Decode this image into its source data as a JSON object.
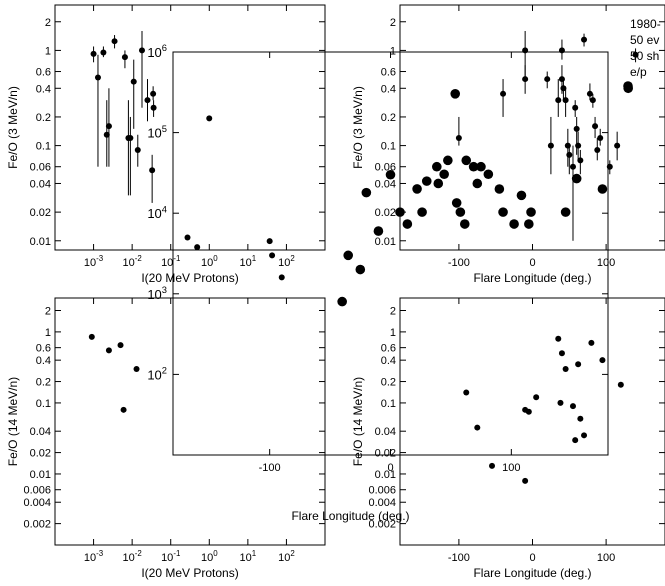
{
  "chart_data": [
    {
      "type": "scatter",
      "panel": "top-left",
      "xlabel": "I(20 MeV Protons)",
      "ylabel": "Fe/O (3 MeV/n)",
      "xscale": "log",
      "yscale": "log",
      "xlim": [
        0.0001,
        1000
      ],
      "ylim": [
        0.008,
        3
      ],
      "xticks": [
        {
          "v": 0.001,
          "m": "10",
          "e": "-3"
        },
        {
          "v": 0.01,
          "m": "10",
          "e": "-2"
        },
        {
          "v": 0.1,
          "m": "10",
          "e": "-1"
        },
        {
          "v": 1,
          "m": "10",
          "e": "0"
        },
        {
          "v": 10,
          "m": "10",
          "e": "1"
        },
        {
          "v": 100,
          "m": "10",
          "e": "2"
        }
      ],
      "yticks": [
        "0.01",
        "0.02",
        "0.04",
        "0.06",
        "0.1",
        "0.2",
        "0.4",
        "0.6",
        "1",
        "2"
      ],
      "series": [
        {
          "kind": "small",
          "points": [
            {
              "x": 0.001,
              "y": 0.92,
              "lo": 0.75,
              "hi": 1.1
            },
            {
              "x": 0.0013,
              "y": 0.52,
              "lo": 0.06,
              "hi": 0.9
            },
            {
              "x": 0.0018,
              "y": 0.95,
              "lo": 0.85,
              "hi": 1.1
            },
            {
              "x": 0.0022,
              "y": 0.13,
              "lo": 0.06,
              "hi": 0.3
            },
            {
              "x": 0.0025,
              "y": 0.16,
              "lo": 0.06,
              "hi": 0.4
            },
            {
              "x": 0.0035,
              "y": 1.25,
              "lo": 1.05,
              "hi": 1.45
            },
            {
              "x": 0.0065,
              "y": 0.85,
              "lo": 0.65,
              "hi": 1.0
            },
            {
              "x": 0.008,
              "y": 0.12,
              "lo": 0.03,
              "hi": 0.3
            },
            {
              "x": 0.009,
              "y": 0.12,
              "lo": 0.03,
              "hi": 0.2
            },
            {
              "x": 0.011,
              "y": 0.47,
              "lo": 0.15,
              "hi": 0.8
            },
            {
              "x": 0.014,
              "y": 0.09,
              "lo": 0.06,
              "hi": 0.13
            },
            {
              "x": 0.018,
              "y": 1.0,
              "lo": 0.25,
              "hi": 1.6
            },
            {
              "x": 0.025,
              "y": 0.3,
              "lo": 0.18,
              "hi": 0.5
            },
            {
              "x": 0.035,
              "y": 0.35,
              "lo": 0.3,
              "hi": 0.42
            },
            {
              "x": 0.036,
              "y": 0.25,
              "lo": 0.2,
              "hi": 0.3
            },
            {
              "x": 0.033,
              "y": 0.055,
              "lo": 0.025,
              "hi": 0.08
            }
          ]
        }
      ]
    },
    {
      "type": "scatter",
      "panel": "top-right",
      "xlabel": "Flare Longitude (deg.)",
      "ylabel": "Fe/O (3 MeV/n)",
      "yscale": "log",
      "xlim": [
        -180,
        180
      ],
      "ylim": [
        0.008,
        3
      ],
      "xticks": [
        "-100",
        "0",
        "100"
      ],
      "yticks": [
        "0.01",
        "0.02",
        "0.04",
        "0.06",
        "0.1",
        "0.2",
        "0.4",
        "0.6",
        "1",
        "2"
      ],
      "legend": [
        "1980-",
        "50 ev",
        "50 sh",
        "e/p"
      ],
      "series": [
        {
          "kind": "small",
          "points": [
            {
              "x": -10,
              "y": 1.0,
              "lo": 0.5,
              "hi": 1.6
            },
            {
              "x": -10,
              "y": 0.5,
              "lo": 0.35,
              "hi": 0.7
            },
            {
              "x": -40,
              "y": 0.35,
              "lo": 0.2,
              "hi": 0.5
            },
            {
              "x": -100,
              "y": 0.12,
              "lo": 0.1,
              "hi": 0.2
            },
            {
              "x": 20,
              "y": 0.5,
              "lo": 0.4,
              "hi": 0.6
            },
            {
              "x": 25,
              "y": 0.1,
              "lo": 0.05,
              "hi": 0.2
            },
            {
              "x": 35,
              "y": 0.3,
              "lo": 0.2,
              "hi": 0.5
            },
            {
              "x": 40,
              "y": 0.5,
              "lo": 0.35,
              "hi": 0.7
            },
            {
              "x": 40,
              "y": 1.0,
              "lo": 0.8,
              "hi": 1.3
            },
            {
              "x": 42,
              "y": 0.4,
              "lo": 0.3,
              "hi": 0.5
            },
            {
              "x": 45,
              "y": 0.3,
              "lo": 0.2,
              "hi": 0.4
            },
            {
              "x": 48,
              "y": 0.1,
              "lo": 0.06,
              "hi": 0.15
            },
            {
              "x": 50,
              "y": 0.08,
              "lo": 0.05,
              "hi": 0.1
            },
            {
              "x": 55,
              "y": 0.06,
              "lo": 0.01,
              "hi": 0.1
            },
            {
              "x": 58,
              "y": 0.25,
              "lo": 0.2,
              "hi": 0.3
            },
            {
              "x": 60,
              "y": 0.15,
              "lo": 0.08,
              "hi": 0.2
            },
            {
              "x": 62,
              "y": 0.1,
              "lo": 0.07,
              "hi": 0.14
            },
            {
              "x": 65,
              "y": 0.07,
              "lo": 0.05,
              "hi": 0.09
            },
            {
              "x": 70,
              "y": 1.3,
              "lo": 1.1,
              "hi": 1.5
            },
            {
              "x": 78,
              "y": 0.35,
              "lo": 0.3,
              "hi": 0.45
            },
            {
              "x": 82,
              "y": 0.3,
              "lo": 0.25,
              "hi": 0.35
            },
            {
              "x": 85,
              "y": 0.16,
              "lo": 0.12,
              "hi": 0.2
            },
            {
              "x": 88,
              "y": 0.09,
              "lo": 0.07,
              "hi": 0.12
            },
            {
              "x": 92,
              "y": 0.12,
              "lo": 0.1,
              "hi": 0.15
            },
            {
              "x": 105,
              "y": 0.06,
              "lo": 0.05,
              "hi": 0.07
            },
            {
              "x": 115,
              "y": 0.1,
              "lo": 0.07,
              "hi": 0.14
            },
            {
              "x": 140,
              "y": 0.9,
              "lo": 0.75,
              "hi": 1.05
            }
          ]
        },
        {
          "kind": "large",
          "points": [
            {
              "x": -180,
              "y": 0.02
            },
            {
              "x": -170,
              "y": 0.015
            },
            {
              "x": -150,
              "y": 0.02
            },
            {
              "x": -130,
              "y": 0.06
            },
            {
              "x": -128,
              "y": 0.04
            },
            {
              "x": -120,
              "y": 0.05
            },
            {
              "x": -115,
              "y": 0.07
            },
            {
              "x": -105,
              "y": 0.35
            },
            {
              "x": -103,
              "y": 0.025
            },
            {
              "x": -98,
              "y": 0.02
            },
            {
              "x": -92,
              "y": 0.015
            },
            {
              "x": -90,
              "y": 0.07
            },
            {
              "x": -80,
              "y": 0.06
            },
            {
              "x": -75,
              "y": 0.04
            },
            {
              "x": -70,
              "y": 0.06
            },
            {
              "x": -60,
              "y": 0.05
            },
            {
              "x": -45,
              "y": 0.035
            },
            {
              "x": -40,
              "y": 0.02
            },
            {
              "x": -25,
              "y": 0.015
            },
            {
              "x": -15,
              "y": 0.03
            },
            {
              "x": -5,
              "y": 0.015
            },
            {
              "x": -2,
              "y": 0.02
            },
            {
              "x": 45,
              "y": 0.02
            },
            {
              "x": 60,
              "y": 0.045
            },
            {
              "x": 95,
              "y": 0.035
            },
            {
              "x": 130,
              "y": 0.4
            }
          ]
        }
      ]
    },
    {
      "type": "scatter",
      "panel": "bottom-left",
      "xlabel": "I(20 MeV Protons)",
      "ylabel": "Fe/O (14 MeV/n)",
      "xscale": "log",
      "yscale": "log",
      "xlim": [
        0.0001,
        1000
      ],
      "ylim": [
        0.001,
        3
      ],
      "xticks": [
        {
          "v": 0.001,
          "m": "10",
          "e": "-3"
        },
        {
          "v": 0.01,
          "m": "10",
          "e": "-2"
        },
        {
          "v": 0.1,
          "m": "10",
          "e": "-1"
        },
        {
          "v": 1,
          "m": "10",
          "e": "0"
        },
        {
          "v": 10,
          "m": "10",
          "e": "1"
        },
        {
          "v": 100,
          "m": "10",
          "e": "2"
        }
      ],
      "yticks": [
        "0.002",
        "0.004",
        "0.006",
        "0.01",
        "0.02",
        "0.04",
        "0.1",
        "0.2",
        "0.4",
        "0.6",
        "1",
        "2"
      ],
      "series": [
        {
          "kind": "small",
          "points": [
            {
              "x": 0.0009,
              "y": 0.85
            },
            {
              "x": 0.0025,
              "y": 0.55
            },
            {
              "x": 0.005,
              "y": 0.65
            },
            {
              "x": 0.006,
              "y": 0.08
            },
            {
              "x": 0.013,
              "y": 0.3
            }
          ]
        }
      ]
    },
    {
      "type": "scatter",
      "panel": "bottom-right",
      "xlabel": "Flare Longitude (deg.)",
      "ylabel": "Fe/O (14 MeV/n)",
      "yscale": "log",
      "xlim": [
        -180,
        180
      ],
      "ylim": [
        0.001,
        3
      ],
      "xticks": [
        "-100",
        "0",
        "100"
      ],
      "yticks": [
        "0.002",
        "0.004",
        "0.006",
        "0.01",
        "0.02",
        "0.04",
        "0.1",
        "0.2",
        "0.4",
        "0.6",
        "1",
        "2"
      ],
      "series": [
        {
          "kind": "small",
          "points": [
            {
              "x": -90,
              "y": 0.14
            },
            {
              "x": -75,
              "y": 0.045
            },
            {
              "x": -55,
              "y": 0.013
            },
            {
              "x": -10,
              "y": 0.08
            },
            {
              "x": -10,
              "y": 0.008
            },
            {
              "x": -5,
              "y": 0.075
            },
            {
              "x": 5,
              "y": 0.12
            },
            {
              "x": 35,
              "y": 0.8
            },
            {
              "x": 38,
              "y": 0.1
            },
            {
              "x": 40,
              "y": 0.5
            },
            {
              "x": 45,
              "y": 0.3
            },
            {
              "x": 55,
              "y": 0.09
            },
            {
              "x": 58,
              "y": 0.03
            },
            {
              "x": 62,
              "y": 0.35
            },
            {
              "x": 65,
              "y": 0.06
            },
            {
              "x": 70,
              "y": 0.035
            },
            {
              "x": 80,
              "y": 0.7
            },
            {
              "x": 95,
              "y": 0.4
            },
            {
              "x": 120,
              "y": 0.18
            }
          ]
        }
      ]
    },
    {
      "type": "scatter",
      "panel": "overlay",
      "xlabel": "Flare Longitude (deg.)",
      "yscale": "log",
      "xlim": [
        -180,
        180
      ],
      "ylim": [
        10,
        1000000
      ],
      "xticks": [
        "-100",
        "0",
        "100"
      ],
      "yticks": [
        {
          "v": 100,
          "m": "10",
          "e": "2"
        },
        {
          "v": 1000,
          "m": "10",
          "e": "3"
        },
        {
          "v": 10000,
          "m": "10",
          "e": "4"
        },
        {
          "v": 100000,
          "m": "10",
          "e": "5"
        },
        {
          "v": 1000000,
          "m": "10",
          "e": "6"
        }
      ],
      "series": [
        {
          "kind": "small",
          "points": [
            {
              "x": -168,
              "y": 5000
            },
            {
              "x": -160,
              "y": 3800
            },
            {
              "x": -150,
              "y": 150000
            },
            {
              "x": -100,
              "y": 4500
            },
            {
              "x": -98,
              "y": 3000
            },
            {
              "x": -90,
              "y": 1600
            }
          ]
        },
        {
          "kind": "large",
          "points": [
            {
              "x": -35,
              "y": 3000
            },
            {
              "x": -20,
              "y": 18000
            },
            {
              "x": 0,
              "y": 30000
            },
            {
              "x": -10,
              "y": 6000
            },
            {
              "x": -25,
              "y": 2000
            },
            {
              "x": -40,
              "y": 800
            },
            {
              "x": 22,
              "y": 20000
            },
            {
              "x": 30,
              "y": 25000
            }
          ]
        }
      ]
    }
  ]
}
